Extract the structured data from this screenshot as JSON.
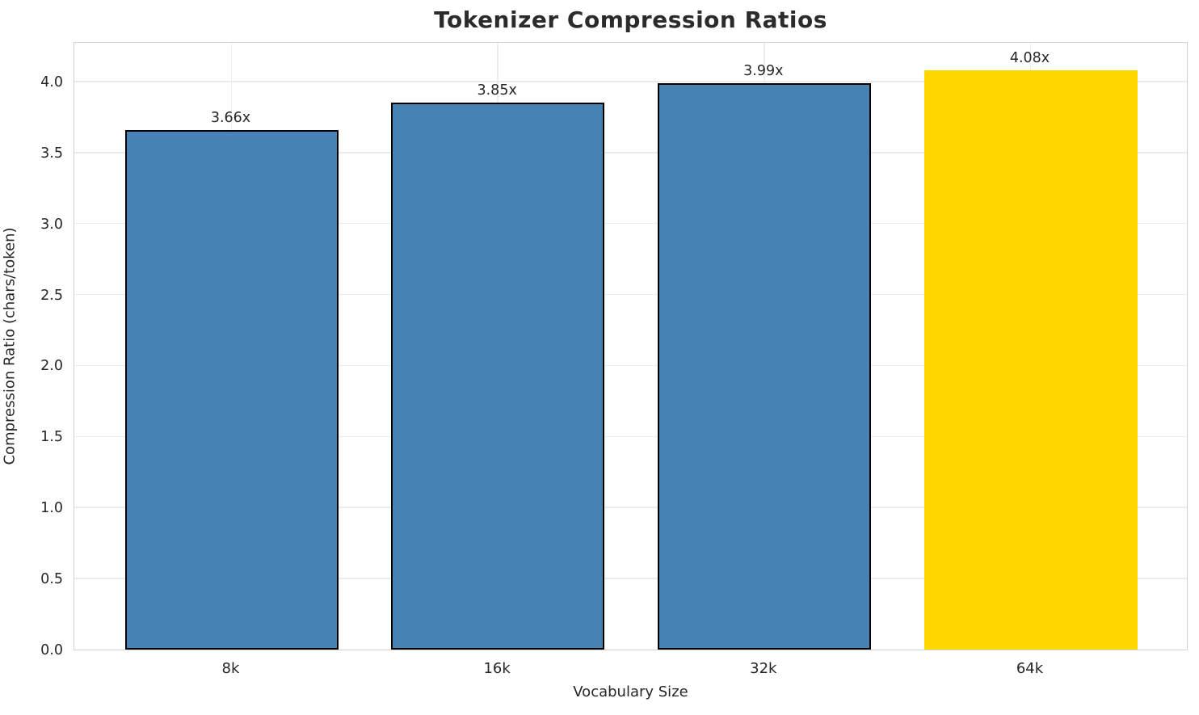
{
  "chart_data": {
    "type": "bar",
    "title": "Tokenizer Compression Ratios",
    "xlabel": "Vocabulary Size",
    "ylabel": "Compression Ratio (chars/token)",
    "categories": [
      "8k",
      "16k",
      "32k",
      "64k"
    ],
    "values": [
      3.66,
      3.85,
      3.99,
      4.08
    ],
    "bar_labels": [
      "3.66x",
      "3.85x",
      "3.99x",
      "4.08x"
    ],
    "bar_colors": [
      "#4682b4",
      "#4682b4",
      "#4682b4",
      "#ffd700"
    ],
    "bar_edge_colors": [
      "#000000",
      "#000000",
      "#000000",
      "none"
    ],
    "default_color": "#4682b4",
    "highlight_color": "#ffd700",
    "edge_color": "#000000",
    "ylim": [
      0.0,
      4.28
    ],
    "yticks": [
      "0.0",
      "0.5",
      "1.0",
      "1.5",
      "2.0",
      "2.5",
      "3.0",
      "3.5",
      "4.0"
    ],
    "grid": "both",
    "legend": "none",
    "grid_color": "#ececec",
    "spine_color": "#d2d2d2",
    "text_color": "#262626",
    "title_color": "#2b2b2b",
    "background_color": "#ffffff"
  }
}
